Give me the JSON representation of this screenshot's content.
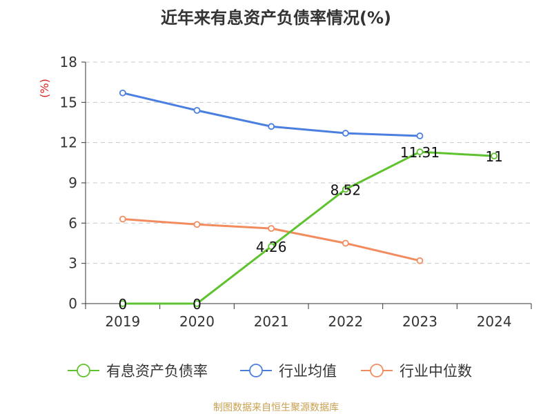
{
  "title": "近年来有息资产负债率情况(%)",
  "source": "制图数据来自恒生聚源数据库",
  "chart_data": {
    "type": "line",
    "title": "近年来有息资产负债率情况(%)",
    "ylabel": "(%)",
    "ylim": [
      0,
      18
    ],
    "yticks": [
      0,
      3,
      6,
      9,
      12,
      15,
      18
    ],
    "categories": [
      "2019",
      "2020",
      "2021",
      "2022",
      "2023",
      "2024"
    ],
    "grid": true,
    "legend": "bottom",
    "series": [
      {
        "name": "有息资产负债率",
        "color": "#5ec22e",
        "values": [
          0,
          0,
          4.26,
          8.52,
          11.31,
          11
        ],
        "labels": [
          "0",
          "0",
          "4.26",
          "8.52",
          "11.31",
          "11"
        ]
      },
      {
        "name": "行业均值",
        "color": "#4a7fe0",
        "values": [
          15.7,
          14.4,
          13.2,
          12.7,
          12.5,
          null
        ]
      },
      {
        "name": "行业中位数",
        "color": "#f28c5e",
        "values": [
          6.3,
          5.9,
          5.6,
          4.5,
          3.2,
          null
        ]
      }
    ]
  }
}
